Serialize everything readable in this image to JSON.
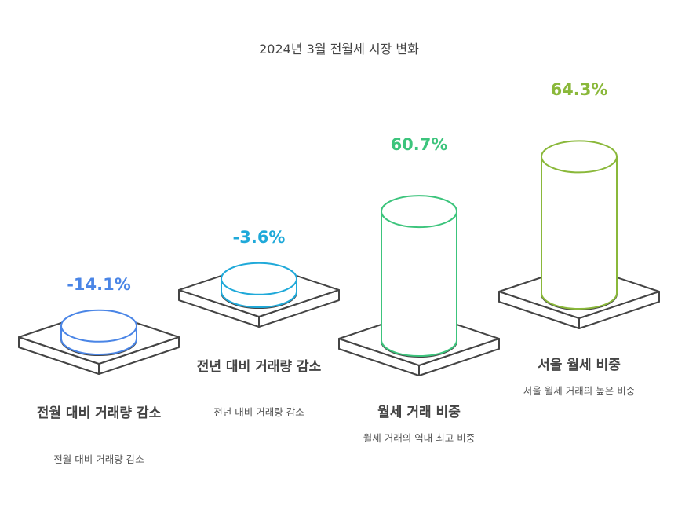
{
  "title": "2024년 3월 전월세 시장 변화",
  "items": [
    {
      "value_label": "-14.1%",
      "heading": "전월 대비 거래량 감소",
      "description": "전월 대비 거래량 감소",
      "color": "#4a85e6",
      "level": 0.06
    },
    {
      "value_label": "-3.6%",
      "heading": "전년 대비 거래량 감소",
      "description": "전년 대비 거래량 감소",
      "color": "#1fa9d9",
      "level": 0.06
    },
    {
      "value_label": "60.7%",
      "heading": "월세 거래 비중",
      "description": "월세 거래의 역대 최고 비중",
      "color": "#3cc47c",
      "level": 0.607
    },
    {
      "value_label": "64.3%",
      "heading": "서울 월세 비중",
      "description": "서울 월세 거래의 높은 비중",
      "color": "#8ab83a",
      "level": 0.643
    }
  ]
}
